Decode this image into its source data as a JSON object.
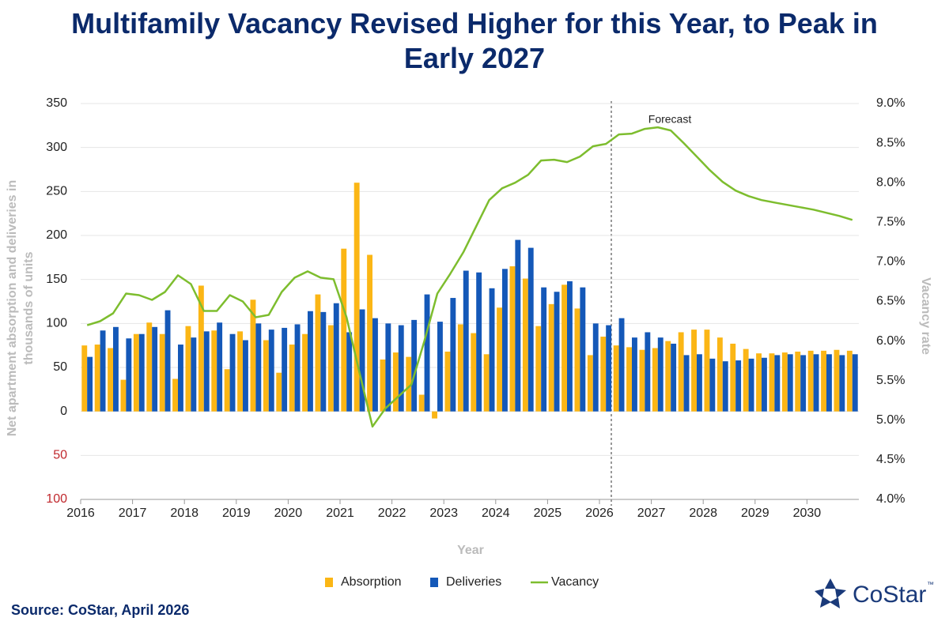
{
  "chart_data": {
    "type": "bar",
    "title": "Multifamily Vacancy Revised Higher for this Year, to Peak in Early 2027",
    "annotation": "Forecast",
    "xlabel": "Year",
    "ylabel": "Net apartment absorption and deliveries in thousands of units",
    "y2label": "Vacancy rate",
    "source": "Source: CoStar, April 2026",
    "brand": "CoStar",
    "brand_mark": "™",
    "categories": [
      "2016",
      null,
      null,
      null,
      "2017",
      null,
      null,
      null,
      "2018",
      null,
      null,
      null,
      "2019",
      null,
      null,
      null,
      "2020",
      null,
      null,
      null,
      "2021",
      null,
      null,
      null,
      "2022",
      null,
      null,
      null,
      "2023",
      null,
      null,
      null,
      "2024",
      null,
      null,
      null,
      "2025",
      null,
      null,
      null,
      "2026",
      null,
      null,
      null,
      "2027",
      null,
      null,
      null,
      "2028",
      null,
      null,
      null,
      "2029",
      null,
      null,
      null,
      "2030",
      null,
      null,
      null
    ],
    "series": [
      {
        "name": "Absorption",
        "color": "#fbb615",
        "values": [
          75,
          76,
          72,
          36,
          88,
          101,
          88,
          37,
          97,
          143,
          92,
          48,
          91,
          127,
          81,
          44,
          76,
          88,
          133,
          98,
          185,
          260,
          178,
          59,
          67,
          62,
          19,
          -8,
          68,
          99,
          89,
          65,
          118,
          165,
          151,
          97,
          122,
          144,
          117,
          64,
          85,
          75,
          73,
          70,
          72,
          80,
          90,
          93,
          93,
          84,
          77,
          71,
          66,
          66,
          67,
          68,
          69,
          69,
          70,
          69
        ]
      },
      {
        "name": "Deliveries",
        "color": "#1458b8",
        "values": [
          62,
          92,
          96,
          83,
          88,
          96,
          115,
          76,
          84,
          91,
          101,
          88,
          81,
          100,
          93,
          95,
          99,
          114,
          113,
          123,
          90,
          116,
          106,
          100,
          98,
          104,
          133,
          102,
          129,
          160,
          158,
          140,
          162,
          195,
          186,
          141,
          136,
          148,
          141,
          100,
          98,
          106,
          84,
          90,
          84,
          77,
          64,
          65,
          60,
          57,
          58,
          60,
          61,
          64,
          65,
          64,
          65,
          65,
          64,
          65
        ]
      },
      {
        "name": "Vacancy",
        "color": "#7dbd2e",
        "type": "line",
        "axis": "y2",
        "values": [
          6.2,
          6.25,
          6.35,
          6.6,
          6.58,
          6.52,
          6.62,
          6.83,
          6.72,
          6.38,
          6.38,
          6.58,
          6.5,
          6.3,
          6.33,
          6.62,
          6.8,
          6.88,
          6.8,
          6.78,
          6.3,
          5.6,
          4.92,
          5.15,
          5.3,
          5.45,
          6.0,
          6.6,
          6.85,
          7.12,
          7.45,
          7.78,
          7.93,
          8.0,
          8.1,
          8.28,
          8.29,
          8.26,
          8.33,
          8.46,
          8.49,
          8.61,
          8.62,
          8.68,
          8.7,
          8.66,
          8.5,
          8.33,
          8.16,
          8.01,
          7.9,
          7.83,
          7.78,
          7.75,
          7.72,
          7.69,
          7.66,
          7.62,
          7.58,
          7.53
        ]
      }
    ],
    "ylim": [
      -100,
      350
    ],
    "yticks": [
      {
        "value": -100,
        "label": "100"
      },
      {
        "value": -50,
        "label": "50"
      },
      0,
      50,
      100,
      150,
      200,
      250,
      300,
      350
    ],
    "y2lim": [
      4.0,
      9.0
    ],
    "y2ticks": [
      {
        "value": 4.0,
        "label": "4.0%"
      },
      {
        "value": 4.5,
        "label": "4.5%"
      },
      {
        "value": 5.0,
        "label": "5.0%"
      },
      {
        "value": 5.5,
        "label": "5.5%"
      },
      {
        "value": 6.0,
        "label": "6.0%"
      },
      {
        "value": 6.5,
        "label": "6.5%"
      },
      {
        "value": 7.0,
        "label": "7.0%"
      },
      {
        "value": 7.5,
        "label": "7.5%"
      },
      {
        "value": 8.0,
        "label": "8.0%"
      },
      {
        "value": 8.5,
        "label": "8.5%"
      },
      {
        "value": 9.0,
        "label": "9.0%"
      }
    ],
    "grid": true,
    "legend": "bottom"
  }
}
